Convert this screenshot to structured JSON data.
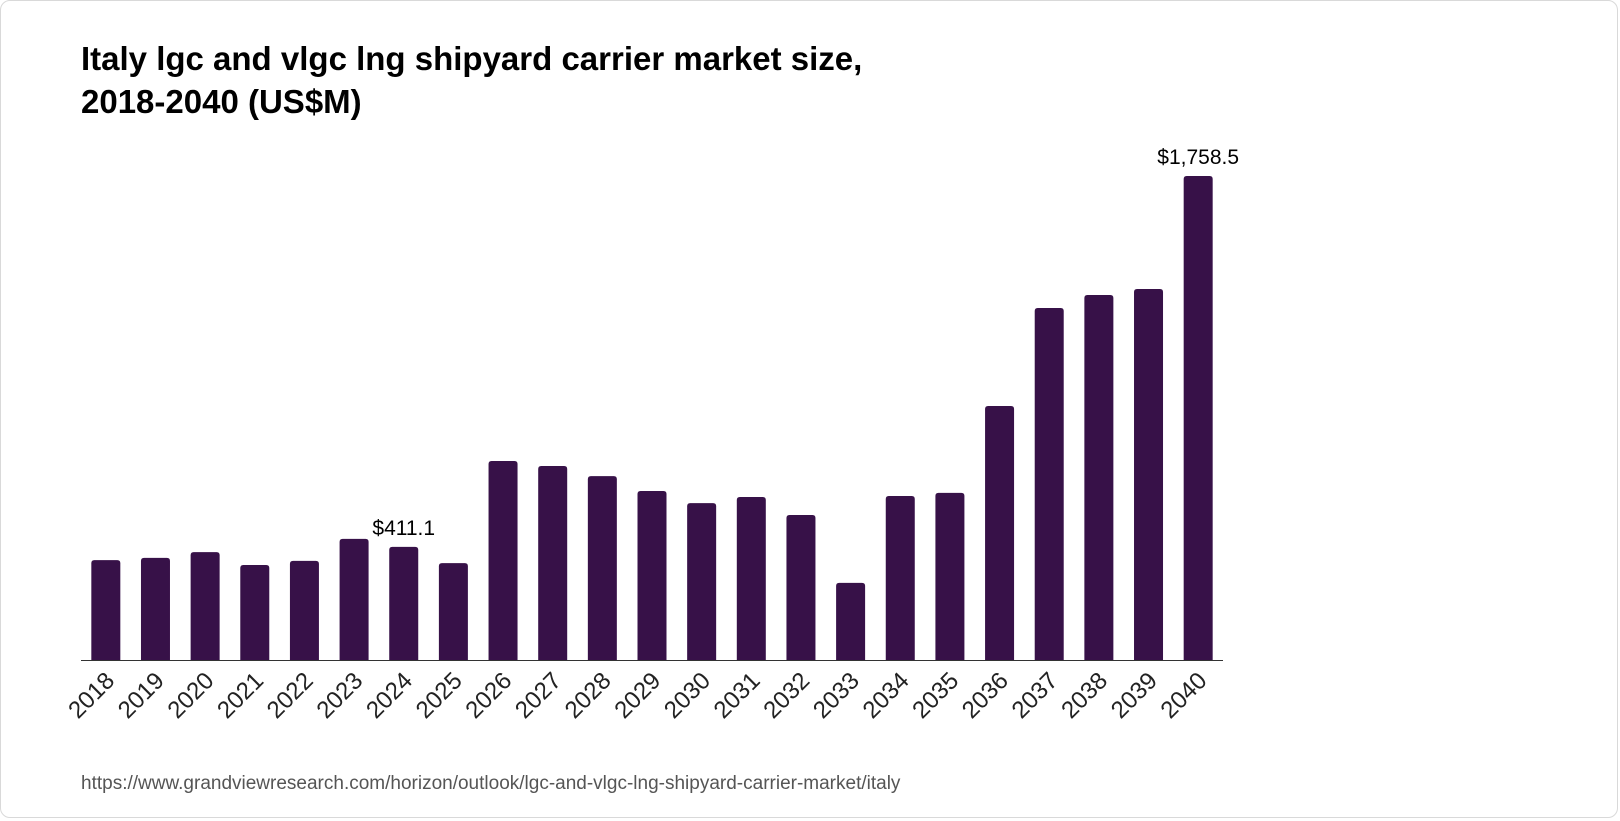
{
  "title_line1": "Italy lgc and vlgc lng shipyard carrier market size,",
  "title_line2": "2018-2040 (US$M)",
  "source": "https://www.grandviewresearch.com/horizon/outlook/lgc-and-vlgc-lng-shipyard-carrier-market/italy",
  "colors": {
    "bar": "#371148",
    "axis": "#333333",
    "text": "#000000"
  },
  "chart_data": {
    "type": "bar",
    "title": "Italy lgc and vlgc lng shipyard carrier market size, 2018-2040 (US$M)",
    "xlabel": "",
    "ylabel": "",
    "categories": [
      "2018",
      "2019",
      "2020",
      "2021",
      "2022",
      "2023",
      "2024",
      "2025",
      "2026",
      "2027",
      "2028",
      "2029",
      "2030",
      "2031",
      "2032",
      "2033",
      "2034",
      "2035",
      "2036",
      "2037",
      "2038",
      "2039",
      "2040"
    ],
    "values": [
      363,
      371,
      392,
      345,
      360,
      440,
      411.1,
      352,
      723,
      705,
      668,
      614,
      570,
      592,
      527,
      280,
      596,
      607,
      923,
      1279,
      1326,
      1348,
      1758.5
    ],
    "data_labels": [
      {
        "category": "2024",
        "text": "$411.1"
      },
      {
        "category": "2040",
        "text": "$1,758.5"
      }
    ],
    "ylim": [
      0,
      1758.5
    ],
    "grid": false,
    "legend": "none"
  }
}
